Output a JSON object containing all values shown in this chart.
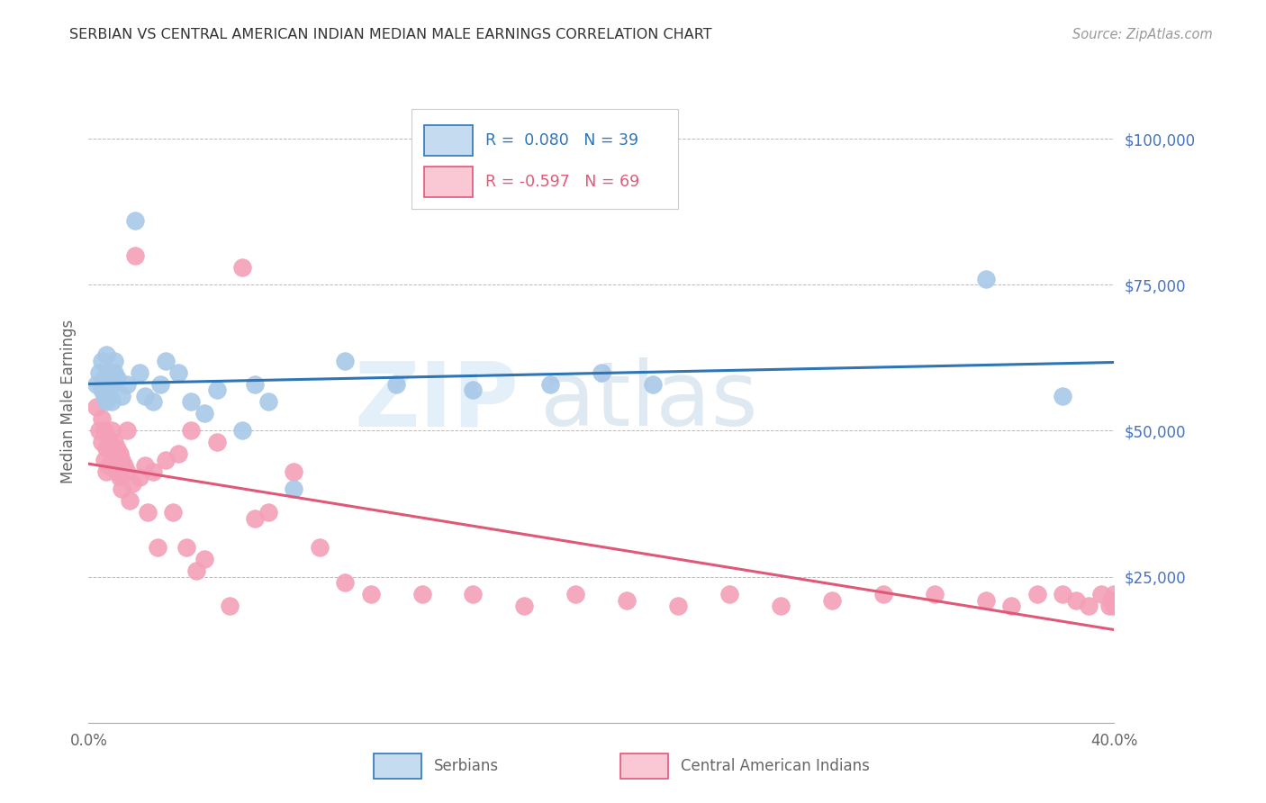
{
  "title": "SERBIAN VS CENTRAL AMERICAN INDIAN MEDIAN MALE EARNINGS CORRELATION CHART",
  "source": "Source: ZipAtlas.com",
  "ylabel": "Median Male Earnings",
  "watermark_zip": "ZIP",
  "watermark_atlas": "atlas",
  "xlim": [
    0.0,
    0.4
  ],
  "ylim": [
    0,
    110000
  ],
  "ytick_values": [
    25000,
    50000,
    75000,
    100000
  ],
  "serbian_color": "#A8C8E8",
  "central_american_color": "#F4A0B8",
  "serbian_line_color": "#2E75B6",
  "central_american_line_color": "#E05878",
  "legend_box_serbian_color": "#C5DCF0",
  "legend_box_ca_color": "#FAC8D5",
  "ytick_color": "#4472C4",
  "R_serbian": 0.08,
  "N_serbian": 39,
  "R_central": -0.597,
  "N_central": 69,
  "background_color": "#FFFFFF",
  "grid_color": "#BBBBBB",
  "serbian_x": [
    0.003,
    0.004,
    0.005,
    0.005,
    0.006,
    0.006,
    0.007,
    0.007,
    0.008,
    0.008,
    0.009,
    0.009,
    0.01,
    0.01,
    0.011,
    0.013,
    0.015,
    0.018,
    0.02,
    0.022,
    0.025,
    0.028,
    0.03,
    0.035,
    0.04,
    0.045,
    0.05,
    0.06,
    0.065,
    0.07,
    0.08,
    0.1,
    0.12,
    0.15,
    0.18,
    0.2,
    0.22,
    0.35,
    0.38
  ],
  "serbian_y": [
    58000,
    60000,
    57000,
    62000,
    56000,
    59000,
    55000,
    63000,
    60000,
    57000,
    58000,
    55000,
    60000,
    62000,
    59000,
    56000,
    58000,
    86000,
    60000,
    56000,
    55000,
    58000,
    62000,
    60000,
    55000,
    53000,
    57000,
    50000,
    58000,
    55000,
    40000,
    62000,
    58000,
    57000,
    58000,
    60000,
    58000,
    76000,
    56000
  ],
  "central_x": [
    0.003,
    0.004,
    0.005,
    0.005,
    0.006,
    0.006,
    0.007,
    0.007,
    0.008,
    0.008,
    0.009,
    0.009,
    0.01,
    0.01,
    0.011,
    0.011,
    0.012,
    0.012,
    0.013,
    0.013,
    0.014,
    0.015,
    0.015,
    0.016,
    0.017,
    0.018,
    0.02,
    0.022,
    0.023,
    0.025,
    0.027,
    0.03,
    0.033,
    0.035,
    0.038,
    0.04,
    0.042,
    0.045,
    0.05,
    0.055,
    0.06,
    0.065,
    0.07,
    0.08,
    0.09,
    0.1,
    0.11,
    0.13,
    0.15,
    0.17,
    0.19,
    0.21,
    0.23,
    0.25,
    0.27,
    0.29,
    0.31,
    0.33,
    0.35,
    0.36,
    0.37,
    0.38,
    0.385,
    0.39,
    0.395,
    0.398,
    0.399,
    0.4,
    0.4
  ],
  "central_y": [
    54000,
    50000,
    52000,
    48000,
    50000,
    45000,
    47000,
    43000,
    48000,
    44000,
    50000,
    46000,
    48000,
    44000,
    47000,
    43000,
    46000,
    42000,
    45000,
    40000,
    44000,
    50000,
    43000,
    38000,
    41000,
    80000,
    42000,
    44000,
    36000,
    43000,
    30000,
    45000,
    36000,
    46000,
    30000,
    50000,
    26000,
    28000,
    48000,
    20000,
    78000,
    35000,
    36000,
    43000,
    30000,
    24000,
    22000,
    22000,
    22000,
    20000,
    22000,
    21000,
    20000,
    22000,
    20000,
    21000,
    22000,
    22000,
    21000,
    20000,
    22000,
    22000,
    21000,
    20000,
    22000,
    20000,
    21000,
    22000,
    20000
  ]
}
